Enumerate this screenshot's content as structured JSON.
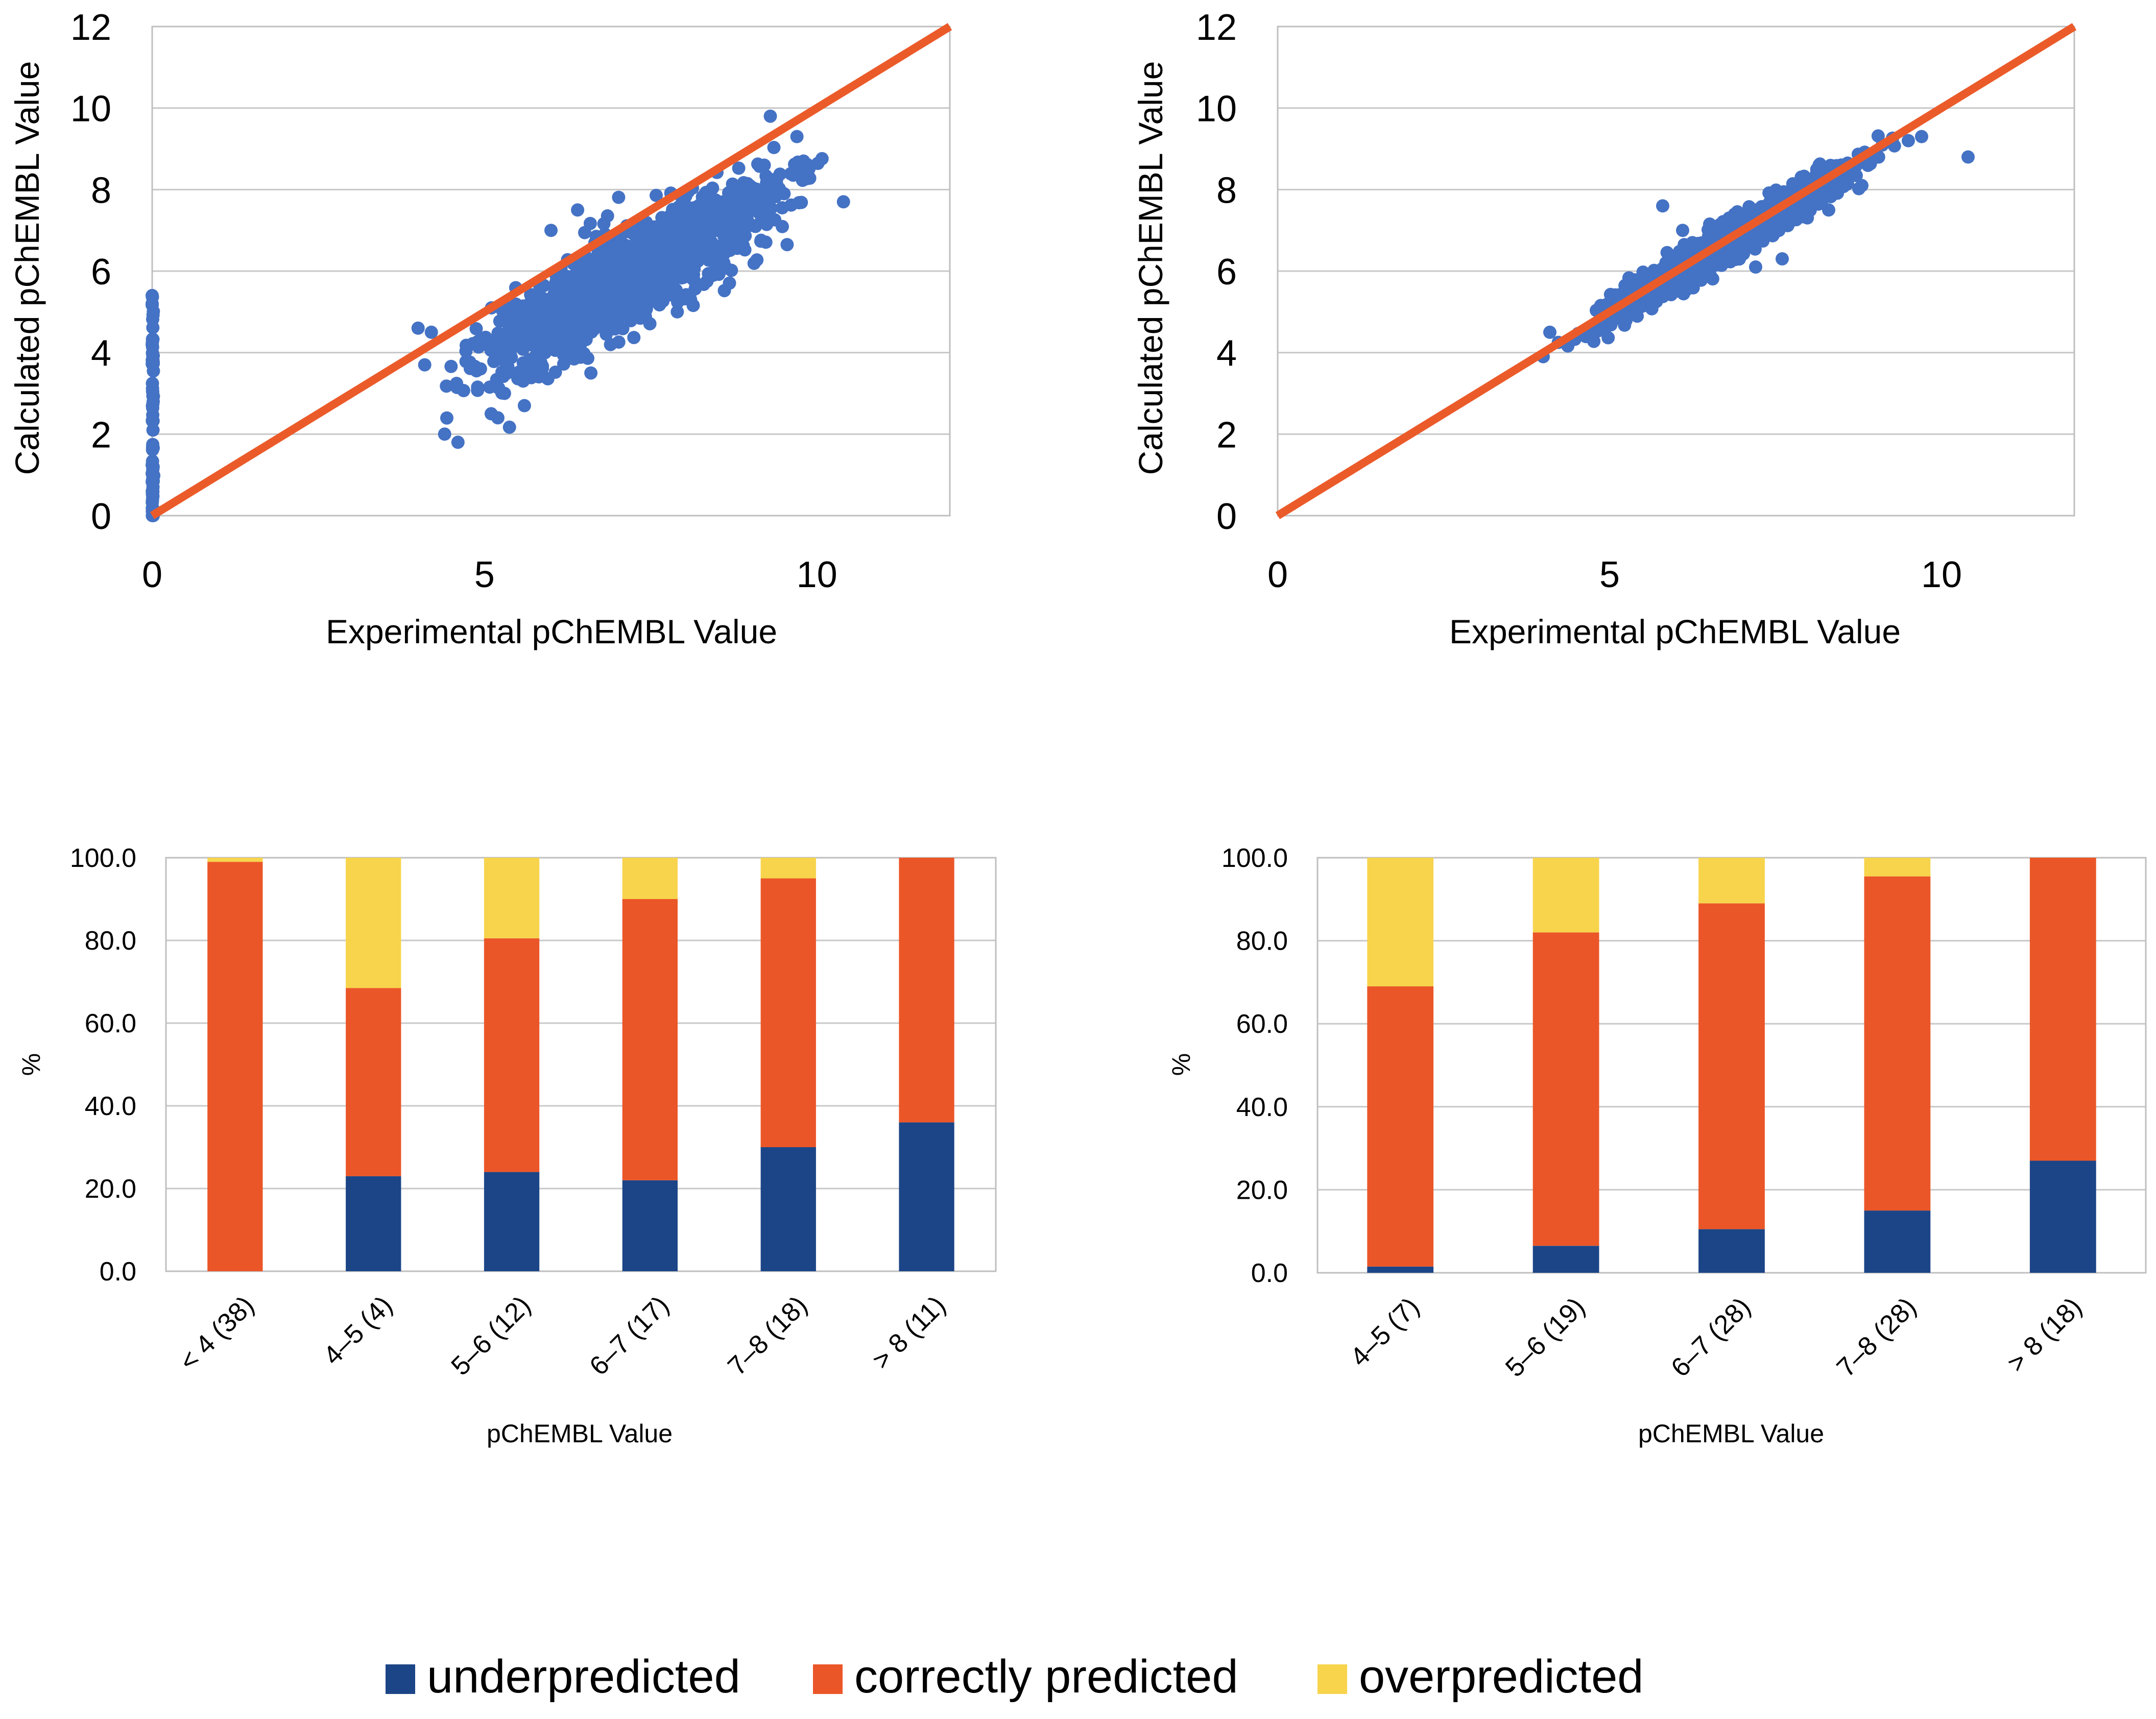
{
  "colors": {
    "scatter_point": "#4472c4",
    "identity_line": "#eb5b2a",
    "underpredicted": "#1c4587",
    "correctly_predicted": "#eb5628",
    "overpredicted": "#f7d44c",
    "gridline": "#c8c8c8",
    "axis_frame": "#bfbfbf",
    "text": "#000000"
  },
  "chart_data": [
    {
      "type": "scatter",
      "panel": "top-left",
      "xlabel": "Experimental pChEMBL Value",
      "ylabel": "Calculated pChEMBL Value",
      "xlim": [
        0,
        12
      ],
      "ylim": [
        0,
        12
      ],
      "xticks": [
        0,
        5,
        10
      ],
      "yticks": [
        0,
        2,
        4,
        6,
        8,
        10,
        12
      ],
      "grid": true,
      "identity_line": [
        [
          0,
          0
        ],
        [
          12,
          12
        ]
      ],
      "series": [
        {
          "name": "calculated vs experimental",
          "clusters": [
            {
              "x": 0,
              "y_range": [
                0.0,
                5.4
              ],
              "count": 70
            },
            {
              "x_range": [
                4.0,
                10.4
              ],
              "slope": 0.9,
              "intercept": -0.6,
              "spread": 0.55,
              "count": 1400
            }
          ],
          "points": [
            {
              "x": 0,
              "y": 5.4
            },
            {
              "x": 0,
              "y": 5.2
            },
            {
              "x": 0,
              "y": 4.2
            },
            {
              "x": 4.4,
              "y": 2.0
            },
            {
              "x": 4.6,
              "y": 1.8
            },
            {
              "x": 5.1,
              "y": 2.5
            },
            {
              "x": 5.2,
              "y": 2.4
            },
            {
              "x": 6.6,
              "y": 3.5
            },
            {
              "x": 10.4,
              "y": 7.7
            },
            {
              "x": 9.3,
              "y": 9.8
            },
            {
              "x": 9.7,
              "y": 9.3
            },
            {
              "x": 9.8,
              "y": 8.7
            },
            {
              "x": 4.0,
              "y": 4.6
            },
            {
              "x": 4.2,
              "y": 4.5
            },
            {
              "x": 4.1,
              "y": 3.7
            },
            {
              "x": 5.3,
              "y": 3.0
            },
            {
              "x": 5.6,
              "y": 2.7
            },
            {
              "x": 6.0,
              "y": 7.0
            },
            {
              "x": 6.4,
              "y": 7.5
            },
            {
              "x": 8.2,
              "y": 6.3
            },
            {
              "x": 8.6,
              "y": 6.2
            },
            {
              "x": 8.1,
              "y": 5.3
            },
            {
              "x": 7.9,
              "y": 5.0
            },
            {
              "x": 5.4,
              "y": 4.3
            }
          ]
        }
      ]
    },
    {
      "type": "scatter",
      "panel": "top-right",
      "xlabel": "Experimental pChEMBL Value",
      "ylabel": "Calculated pChEMBL Value",
      "xlim": [
        0,
        12
      ],
      "ylim": [
        0,
        12
      ],
      "xticks": [
        0,
        5,
        10
      ],
      "yticks": [
        0,
        2,
        4,
        6,
        8,
        10,
        12
      ],
      "grid": true,
      "identity_line": [
        [
          0,
          0
        ],
        [
          12,
          12
        ]
      ],
      "series": [
        {
          "name": "calculated vs experimental",
          "clusters": [
            {
              "x_range": [
                4.0,
                9.6
              ],
              "slope": 0.98,
              "intercept": 0.05,
              "spread": 0.22,
              "count": 1500
            }
          ],
          "points": [
            {
              "x": 10.4,
              "y": 8.8
            },
            {
              "x": 5.8,
              "y": 7.6
            },
            {
              "x": 9.7,
              "y": 9.3
            },
            {
              "x": 9.5,
              "y": 9.2
            },
            {
              "x": 4.0,
              "y": 3.9
            },
            {
              "x": 4.1,
              "y": 4.5
            },
            {
              "x": 7.6,
              "y": 6.3
            },
            {
              "x": 8.3,
              "y": 7.5
            },
            {
              "x": 6.8,
              "y": 7.3
            },
            {
              "x": 8.8,
              "y": 8.1
            },
            {
              "x": 7.2,
              "y": 6.1
            },
            {
              "x": 6.1,
              "y": 7.0
            }
          ]
        }
      ]
    },
    {
      "type": "bar",
      "stacked": true,
      "panel": "bottom-left",
      "xlabel": "pChEMBL Value",
      "ylabel": "%",
      "ylim": [
        0,
        100
      ],
      "yticks": [
        "0.0",
        "20.0",
        "40.0",
        "60.0",
        "80.0",
        "100.0"
      ],
      "grid": true,
      "categories": [
        "< 4 (38)",
        "4–5 (4)",
        "5–6 (12)",
        "6–7 (17)",
        "7–8 (18)",
        "> 8 (11)"
      ],
      "series": [
        {
          "name": "underpredicted",
          "values": [
            0,
            23,
            24,
            22,
            30,
            36
          ]
        },
        {
          "name": "correctly predicted",
          "values": [
            99,
            45.5,
            56.5,
            68,
            65,
            64
          ]
        },
        {
          "name": "overpredicted",
          "values": [
            1,
            31.5,
            19.5,
            10,
            5,
            0
          ]
        }
      ]
    },
    {
      "type": "bar",
      "stacked": true,
      "panel": "bottom-right",
      "xlabel": "pChEMBL Value",
      "ylabel": "%",
      "ylim": [
        0,
        100
      ],
      "yticks": [
        "0.0",
        "20.0",
        "40.0",
        "60.0",
        "80.0",
        "100.0"
      ],
      "grid": true,
      "categories": [
        "4–5 (7)",
        "5–6 (19)",
        "6–7 (28)",
        "7–8 (28)",
        "> 8 (18)"
      ],
      "series": [
        {
          "name": "underpredicted",
          "values": [
            1.5,
            6.5,
            10.5,
            15,
            27
          ]
        },
        {
          "name": "correctly predicted",
          "values": [
            67.5,
            75.5,
            78.5,
            80.5,
            73
          ]
        },
        {
          "name": "overpredicted",
          "values": [
            31,
            18,
            11,
            4.5,
            0
          ]
        }
      ]
    }
  ],
  "legend": {
    "placement": "bottom-center",
    "items": [
      {
        "label": "underpredicted",
        "color_key": "underpredicted"
      },
      {
        "label": "correctly predicted",
        "color_key": "correctly_predicted"
      },
      {
        "label": "overpredicted",
        "color_key": "overpredicted"
      }
    ]
  }
}
